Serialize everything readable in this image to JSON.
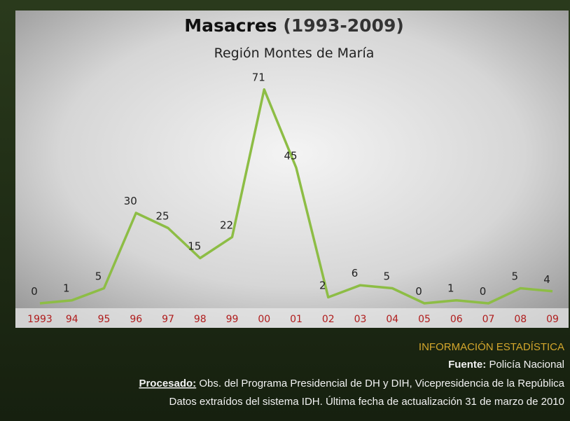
{
  "chart_data": {
    "type": "line",
    "title": "Masacres",
    "title_years": "(1993-2009)",
    "subtitle": "Región Montes de María",
    "categories": [
      "1993",
      "94",
      "95",
      "96",
      "97",
      "98",
      "99",
      "00",
      "01",
      "02",
      "03",
      "04",
      "05",
      "06",
      "07",
      "08",
      "09"
    ],
    "values": [
      0,
      1,
      5,
      30,
      25,
      15,
      22,
      71,
      45,
      2,
      6,
      5,
      0,
      1,
      0,
      5,
      4
    ],
    "color": "#8dbd45"
  },
  "footer": {
    "heading": "INFORMACIÓN ESTADÍSTICA",
    "source_label": "Fuente:",
    "source": "Policía Nacional",
    "processed_label": "Procesado:",
    "processed": "Obs. del Programa Presidencial de DH y DIH, Vicepresidencia de la República",
    "note": "Datos extraídos del sistema IDH. Última fecha de actualización 31 de marzo de 2010"
  }
}
